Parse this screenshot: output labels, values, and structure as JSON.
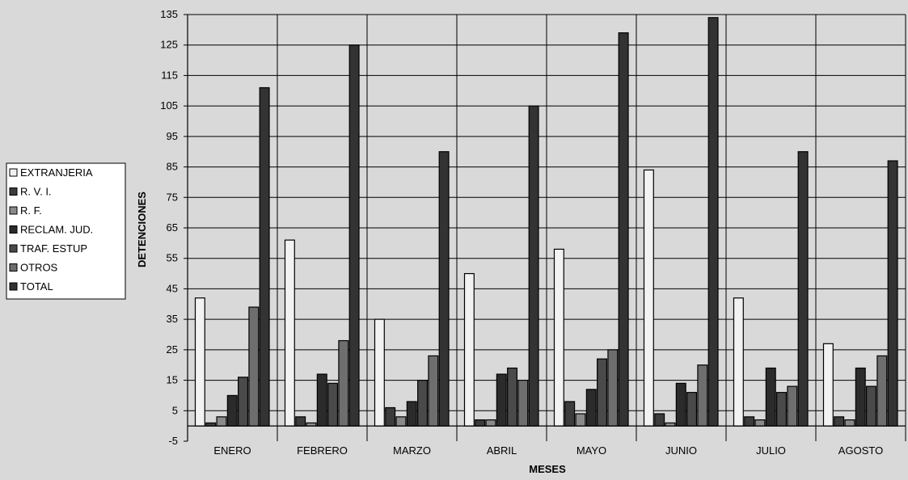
{
  "chart_data": {
    "type": "bar",
    "xlabel": "MESES",
    "ylabel": "DETENCIONES",
    "ylim": [
      -5,
      135
    ],
    "yticks": [
      -5,
      5,
      15,
      25,
      35,
      45,
      55,
      65,
      75,
      85,
      95,
      105,
      115,
      125,
      135
    ],
    "grid": true,
    "legend_position": "left",
    "categories": [
      "ENERO",
      "FEBRERO",
      "MARZO",
      "ABRIL",
      "MAYO",
      "JUNIO",
      "JULIO",
      "AGOSTO"
    ],
    "series": [
      {
        "name": "EXTRANJERIA",
        "color": "#f2f2f2",
        "values": [
          42,
          61,
          35,
          50,
          58,
          84,
          42,
          27
        ]
      },
      {
        "name": "R. V. I.",
        "color": "#3c3c3c",
        "values": [
          1,
          3,
          6,
          2,
          8,
          4,
          3,
          3
        ]
      },
      {
        "name": "R. F.",
        "color": "#8a8a8a",
        "values": [
          3,
          1,
          3,
          2,
          4,
          1,
          2,
          2
        ]
      },
      {
        "name": "RECLAM. JUD.",
        "color": "#2b2b2b",
        "values": [
          10,
          17,
          8,
          17,
          12,
          14,
          19,
          19
        ]
      },
      {
        "name": "TRAF. ESTUP",
        "color": "#4a4a4a",
        "values": [
          16,
          14,
          15,
          19,
          22,
          11,
          11,
          13
        ]
      },
      {
        "name": "OTROS",
        "color": "#6e6e6e",
        "values": [
          39,
          28,
          23,
          15,
          25,
          20,
          13,
          23
        ]
      },
      {
        "name": "TOTAL",
        "color": "#333333",
        "values": [
          111,
          125,
          90,
          105,
          129,
          134,
          90,
          87
        ]
      }
    ]
  }
}
